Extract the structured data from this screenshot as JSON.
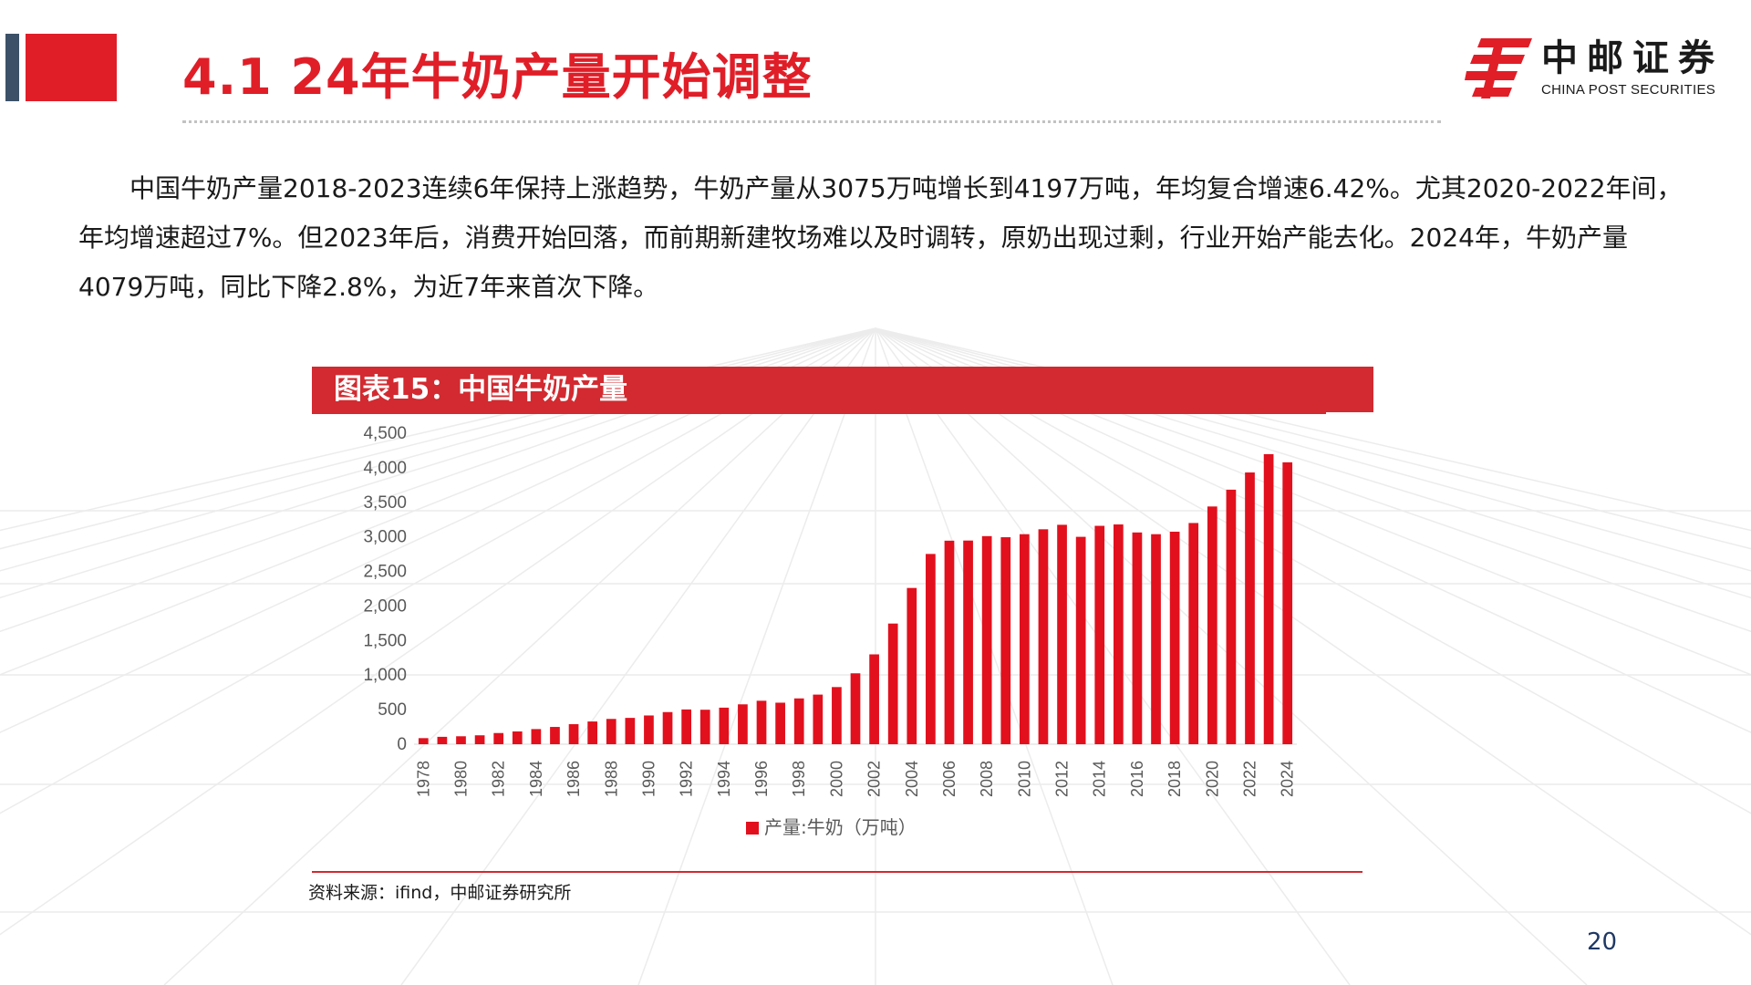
{
  "header": {
    "title": "4.1 24年牛奶产量开始调整",
    "accent_color": "#e01e28",
    "navy_color": "#3c5168"
  },
  "logo": {
    "cn": "中邮证券",
    "en": "CHINA POST SECURITIES",
    "icon": "china-post-logo-icon"
  },
  "paragraph": "中国牛奶产量2018-2023连续6年保持上涨趋势，牛奶产量从3075万吨增长到4197万吨，年均复合增速6.42%。尤其2020-2022年间，年均增速超过7%。但2023年后，消费开始回落，而前期新建牧场难以及时调转，原奶出现过剩，行业开始产能去化。2024年，牛奶产量4079万吨，同比下降2.8%，为近7年来首次下降。",
  "chart_header": "图表15：中国牛奶产量",
  "chart_data": {
    "type": "bar",
    "title": "",
    "xlabel": "",
    "ylabel": "",
    "ylim": [
      0,
      4500
    ],
    "yticks": [
      0,
      500,
      1000,
      1500,
      2000,
      2500,
      3000,
      3500,
      4000,
      4500
    ],
    "ytick_labels": [
      "0",
      "500",
      "1,000",
      "1,500",
      "2,000",
      "2,500",
      "3,000",
      "3,500",
      "4,000",
      "4,500"
    ],
    "categories": [
      "1978",
      "1979",
      "1980",
      "1981",
      "1982",
      "1983",
      "1984",
      "1985",
      "1986",
      "1987",
      "1988",
      "1989",
      "1990",
      "1991",
      "1992",
      "1993",
      "1994",
      "1995",
      "1996",
      "1997",
      "1998",
      "1999",
      "2000",
      "2001",
      "2002",
      "2003",
      "2004",
      "2005",
      "2006",
      "2007",
      "2008",
      "2009",
      "2010",
      "2011",
      "2012",
      "2013",
      "2014",
      "2015",
      "2016",
      "2017",
      "2018",
      "2019",
      "2020",
      "2021",
      "2022",
      "2023",
      "2024"
    ],
    "xtick_labels": [
      "1978",
      "1980",
      "1982",
      "1984",
      "1986",
      "1988",
      "1990",
      "1992",
      "1994",
      "1996",
      "1998",
      "2000",
      "2002",
      "2004",
      "2006",
      "2008",
      "2010",
      "2012",
      "2014",
      "2016",
      "2018",
      "2020",
      "2022",
      "2024"
    ],
    "series": [
      {
        "name": "产量:牛奶（万吨）",
        "color": "#e2101d",
        "values": [
          88,
          107,
          115,
          129,
          162,
          185,
          219,
          250,
          290,
          329,
          366,
          381,
          416,
          465,
          503,
          499,
          529,
          577,
          629,
          601,
          663,
          718,
          827,
          1026,
          1300,
          1746,
          2261,
          2753,
          2945,
          2947,
          3011,
          2995,
          3039,
          3110,
          3175,
          3001,
          3160,
          3180,
          3064,
          3039,
          3075,
          3201,
          3440,
          3683,
          3932,
          4197,
          4079
        ]
      }
    ],
    "grid": false,
    "legend_position": "bottom"
  },
  "source": "资料来源：ifind，中邮证券研究所",
  "page_number": "20"
}
